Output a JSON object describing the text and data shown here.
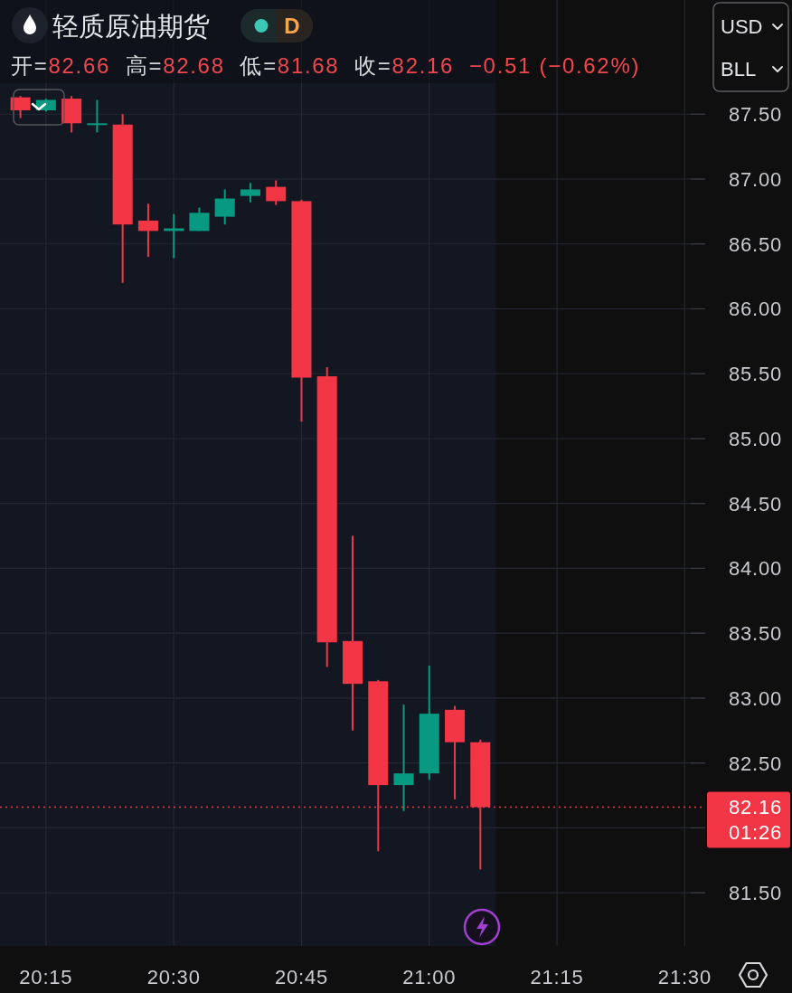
{
  "chart_data": {
    "type": "candlestick",
    "title": "轻质原油期货",
    "subtitle": "开=82.66 高=82.68 低=81.68 收=82.16 −0.51 (−0.62%)",
    "annotations": [
      "D",
      "USD",
      "BLL",
      "01:26"
    ],
    "x": [
      20.2,
      20.25,
      20.3,
      20.35,
      20.4,
      20.45,
      20.5,
      20.55,
      20.6,
      20.65,
      20.7,
      20.75,
      20.8,
      20.85,
      20.9,
      20.95,
      21.0,
      21.05,
      21.1
    ],
    "ohlc": [
      [
        87.63,
        87.64,
        87.47,
        87.53
      ],
      [
        87.53,
        87.62,
        87.52,
        87.61
      ],
      [
        87.62,
        87.64,
        87.36,
        87.43
      ],
      [
        87.42,
        87.61,
        87.36,
        87.43
      ],
      [
        87.42,
        87.5,
        86.2,
        86.65
      ],
      [
        86.68,
        86.81,
        86.4,
        86.6
      ],
      [
        86.6,
        86.73,
        86.39,
        86.62
      ],
      [
        86.6,
        86.78,
        86.6,
        86.74
      ],
      [
        86.71,
        86.92,
        86.65,
        86.85
      ],
      [
        86.87,
        86.97,
        86.82,
        86.92
      ],
      [
        86.94,
        86.99,
        86.8,
        86.83
      ],
      [
        86.83,
        86.84,
        85.13,
        85.47
      ],
      [
        85.48,
        85.55,
        83.24,
        83.43
      ],
      [
        83.44,
        84.25,
        82.75,
        83.11
      ],
      [
        83.13,
        83.14,
        81.82,
        82.33
      ],
      [
        82.33,
        82.95,
        82.13,
        82.42
      ],
      [
        82.42,
        83.25,
        82.37,
        82.88
      ],
      [
        82.91,
        82.94,
        82.22,
        82.66
      ],
      [
        82.66,
        82.68,
        81.68,
        82.16
      ]
    ],
    "colors": [
      "#f23645",
      "#089981",
      "#f23645",
      "#089981",
      "#f23645",
      "#f23645",
      "#089981",
      "#089981",
      "#089981",
      "#089981",
      "#f23645",
      "#f23645",
      "#f23645",
      "#f23645",
      "#f23645",
      "#089981",
      "#089981",
      "#f23645",
      "#f23645"
    ],
    "xlim": [
      20.16,
      21.54
    ],
    "xticks": [
      {
        "value": 20.25,
        "label": "20:15"
      },
      {
        "value": 20.5,
        "label": "20:30"
      },
      {
        "value": 20.75,
        "label": "20:45"
      },
      {
        "value": 21.0,
        "label": "21:00"
      },
      {
        "value": 21.25,
        "label": "21:15"
      },
      {
        "value": 21.5,
        "label": "21:30"
      }
    ],
    "ylim": [
      81.09,
      88.38
    ],
    "yticks": [
      {
        "value": 81.5,
        "label": "81.50"
      },
      {
        "value": 82.0,
        "label": null
      },
      {
        "value": 82.5,
        "label": "82.50"
      },
      {
        "value": 83.0,
        "label": "83.00"
      },
      {
        "value": 83.5,
        "label": "83.50"
      },
      {
        "value": 84.0,
        "label": "84.00"
      },
      {
        "value": 84.5,
        "label": "84.50"
      },
      {
        "value": 85.0,
        "label": "85.00"
      },
      {
        "value": 85.5,
        "label": "85.50"
      },
      {
        "value": 86.0,
        "label": "86.00"
      },
      {
        "value": 86.5,
        "label": "86.50"
      },
      {
        "value": 87.0,
        "label": "87.00"
      },
      {
        "value": 87.5,
        "label": "87.50"
      }
    ],
    "grid": true,
    "ref_lines": [
      {
        "axis": "y",
        "value": 82.16,
        "label": "82.16",
        "color": "#f23645",
        "line_style": "dotted"
      }
    ],
    "bands": [
      {
        "axis": "x",
        "from": 20.16,
        "to": 21.13,
        "color": "#131722"
      }
    ]
  }
}
